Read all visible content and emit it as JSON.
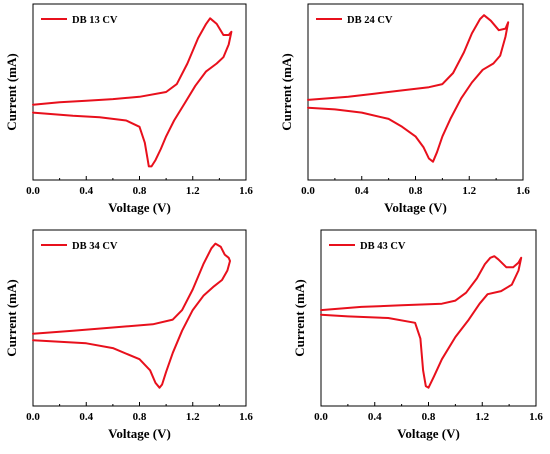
{
  "chart_data": [
    {
      "type": "line",
      "xlabel": "Voltage (V)",
      "ylabel": "Current (mA)",
      "xlim": [
        0.0,
        1.6
      ],
      "x_ticks": [
        "0.0",
        "0.4",
        "0.8",
        "1.2",
        "1.6"
      ],
      "y_ticks": [],
      "ylim": [
        0,
        1
      ],
      "legend": "top-left",
      "color": "#e8101c",
      "series": [
        {
          "name": "DB 13 CV",
          "points": [
            [
              0.0,
              0.42
            ],
            [
              0.2,
              0.435
            ],
            [
              0.4,
              0.445
            ],
            [
              0.6,
              0.455
            ],
            [
              0.8,
              0.47
            ],
            [
              1.0,
              0.5
            ],
            [
              1.08,
              0.55
            ],
            [
              1.16,
              0.68
            ],
            [
              1.24,
              0.84
            ],
            [
              1.3,
              0.93
            ],
            [
              1.33,
              0.965
            ],
            [
              1.38,
              0.93
            ],
            [
              1.43,
              0.86
            ],
            [
              1.47,
              0.86
            ],
            [
              1.49,
              0.88
            ],
            [
              1.47,
              0.8
            ],
            [
              1.43,
              0.72
            ],
            [
              1.38,
              0.68
            ],
            [
              1.3,
              0.63
            ],
            [
              1.22,
              0.54
            ],
            [
              1.14,
              0.43
            ],
            [
              1.06,
              0.32
            ],
            [
              1.0,
              0.22
            ],
            [
              0.96,
              0.14
            ],
            [
              0.92,
              0.07
            ],
            [
              0.89,
              0.03
            ],
            [
              0.87,
              0.03
            ],
            [
              0.86,
              0.08
            ],
            [
              0.84,
              0.18
            ],
            [
              0.8,
              0.28
            ],
            [
              0.7,
              0.32
            ],
            [
              0.5,
              0.34
            ],
            [
              0.3,
              0.35
            ],
            [
              0.0,
              0.37
            ]
          ]
        }
      ]
    },
    {
      "type": "line",
      "xlabel": "Voltage (V)",
      "ylabel": "Current (mA)",
      "xlim": [
        0.0,
        1.6
      ],
      "x_ticks": [
        "0.0",
        "0.4",
        "0.8",
        "1.2",
        "1.6"
      ],
      "y_ticks": [],
      "ylim": [
        0,
        1
      ],
      "legend": "top-left",
      "color": "#e8101c",
      "series": [
        {
          "name": "DB 24 CV",
          "points": [
            [
              0.0,
              0.45
            ],
            [
              0.3,
              0.47
            ],
            [
              0.5,
              0.49
            ],
            [
              0.7,
              0.51
            ],
            [
              0.9,
              0.53
            ],
            [
              1.0,
              0.55
            ],
            [
              1.08,
              0.62
            ],
            [
              1.16,
              0.75
            ],
            [
              1.22,
              0.87
            ],
            [
              1.28,
              0.96
            ],
            [
              1.31,
              0.985
            ],
            [
              1.36,
              0.95
            ],
            [
              1.42,
              0.89
            ],
            [
              1.47,
              0.9
            ],
            [
              1.49,
              0.94
            ],
            [
              1.47,
              0.85
            ],
            [
              1.43,
              0.73
            ],
            [
              1.38,
              0.68
            ],
            [
              1.3,
              0.64
            ],
            [
              1.22,
              0.56
            ],
            [
              1.14,
              0.46
            ],
            [
              1.06,
              0.33
            ],
            [
              1.0,
              0.22
            ],
            [
              0.96,
              0.12
            ],
            [
              0.93,
              0.06
            ],
            [
              0.9,
              0.08
            ],
            [
              0.86,
              0.15
            ],
            [
              0.8,
              0.22
            ],
            [
              0.7,
              0.28
            ],
            [
              0.6,
              0.33
            ],
            [
              0.4,
              0.37
            ],
            [
              0.2,
              0.39
            ],
            [
              0.0,
              0.4
            ]
          ]
        }
      ]
    },
    {
      "type": "line",
      "xlabel": "Voltage (V)",
      "ylabel": "Current (mA)",
      "xlim": [
        0.0,
        1.6
      ],
      "x_ticks": [
        "0.0",
        "0.4",
        "0.8",
        "1.2",
        "1.6"
      ],
      "y_ticks": [],
      "ylim": [
        0,
        1
      ],
      "legend": "top-left",
      "color": "#e8101c",
      "series": [
        {
          "name": "DB 34 CV",
          "points": [
            [
              0.0,
              0.4
            ],
            [
              0.3,
              0.42
            ],
            [
              0.6,
              0.44
            ],
            [
              0.9,
              0.46
            ],
            [
              1.05,
              0.49
            ],
            [
              1.12,
              0.55
            ],
            [
              1.2,
              0.68
            ],
            [
              1.28,
              0.84
            ],
            [
              1.34,
              0.94
            ],
            [
              1.37,
              0.97
            ],
            [
              1.41,
              0.95
            ],
            [
              1.44,
              0.9
            ],
            [
              1.47,
              0.88
            ],
            [
              1.48,
              0.86
            ],
            [
              1.46,
              0.8
            ],
            [
              1.42,
              0.74
            ],
            [
              1.36,
              0.7
            ],
            [
              1.28,
              0.64
            ],
            [
              1.2,
              0.55
            ],
            [
              1.12,
              0.42
            ],
            [
              1.05,
              0.28
            ],
            [
              1.0,
              0.16
            ],
            [
              0.97,
              0.08
            ],
            [
              0.95,
              0.06
            ],
            [
              0.92,
              0.09
            ],
            [
              0.88,
              0.17
            ],
            [
              0.8,
              0.24
            ],
            [
              0.6,
              0.31
            ],
            [
              0.4,
              0.34
            ],
            [
              0.2,
              0.35
            ],
            [
              0.0,
              0.36
            ]
          ]
        }
      ]
    },
    {
      "type": "line",
      "xlabel": "Voltage (V)",
      "ylabel": "Current (mA)",
      "xlim": [
        0.0,
        1.6
      ],
      "x_ticks": [
        "0.0",
        "0.4",
        "0.8",
        "1.2",
        "1.6"
      ],
      "y_ticks": [],
      "ylim": [
        0,
        1
      ],
      "legend": "top-left",
      "color": "#e8101c",
      "series": [
        {
          "name": "DB 43 CV",
          "points": [
            [
              0.0,
              0.55
            ],
            [
              0.3,
              0.57
            ],
            [
              0.6,
              0.58
            ],
            [
              0.9,
              0.59
            ],
            [
              1.0,
              0.61
            ],
            [
              1.08,
              0.66
            ],
            [
              1.16,
              0.75
            ],
            [
              1.22,
              0.84
            ],
            [
              1.26,
              0.88
            ],
            [
              1.29,
              0.89
            ],
            [
              1.32,
              0.87
            ],
            [
              1.38,
              0.82
            ],
            [
              1.43,
              0.82
            ],
            [
              1.47,
              0.85
            ],
            [
              1.49,
              0.88
            ],
            [
              1.47,
              0.8
            ],
            [
              1.42,
              0.71
            ],
            [
              1.34,
              0.67
            ],
            [
              1.24,
              0.65
            ],
            [
              1.18,
              0.59
            ],
            [
              1.1,
              0.49
            ],
            [
              1.0,
              0.38
            ],
            [
              0.9,
              0.24
            ],
            [
              0.84,
              0.13
            ],
            [
              0.8,
              0.06
            ],
            [
              0.78,
              0.07
            ],
            [
              0.76,
              0.17
            ],
            [
              0.74,
              0.37
            ],
            [
              0.7,
              0.47
            ],
            [
              0.5,
              0.5
            ],
            [
              0.2,
              0.51
            ],
            [
              0.0,
              0.52
            ]
          ]
        }
      ]
    }
  ]
}
